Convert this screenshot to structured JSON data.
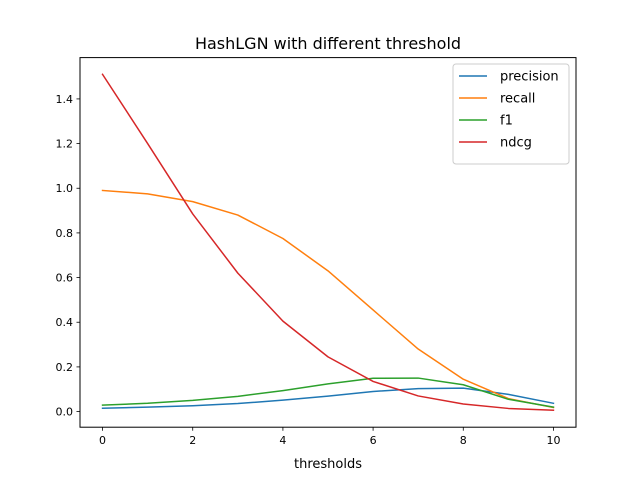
{
  "chart_data": {
    "type": "line",
    "title": "HashLGN with different threshold",
    "xlabel": "thresholds",
    "ylabel": "",
    "xlim": [
      -0.5,
      10.5
    ],
    "ylim": [
      -0.07,
      1.585
    ],
    "xticks": [
      0,
      2,
      4,
      6,
      8,
      10
    ],
    "yticks": [
      0.0,
      0.2,
      0.4,
      0.6,
      0.8,
      1.0,
      1.2,
      1.4
    ],
    "grid": false,
    "legend_position": "top-right",
    "x": [
      0,
      1,
      2,
      3,
      4,
      5,
      6,
      7,
      8,
      9,
      10
    ],
    "series": [
      {
        "name": "precision",
        "color": "#1f77b4",
        "values": [
          0.015,
          0.02,
          0.026,
          0.036,
          0.051,
          0.069,
          0.09,
          0.103,
          0.105,
          0.077,
          0.037
        ]
      },
      {
        "name": "recall",
        "color": "#ff7f0e",
        "values": [
          0.99,
          0.975,
          0.94,
          0.88,
          0.775,
          0.63,
          0.455,
          0.28,
          0.145,
          0.058,
          0.018
        ]
      },
      {
        "name": "f1",
        "color": "#2ca02c",
        "values": [
          0.029,
          0.037,
          0.05,
          0.068,
          0.094,
          0.124,
          0.149,
          0.15,
          0.12,
          0.055,
          0.02
        ]
      },
      {
        "name": "ndcg",
        "color": "#d62728",
        "values": [
          1.51,
          1.2,
          0.885,
          0.62,
          0.405,
          0.245,
          0.135,
          0.07,
          0.034,
          0.014,
          0.006
        ]
      }
    ]
  }
}
